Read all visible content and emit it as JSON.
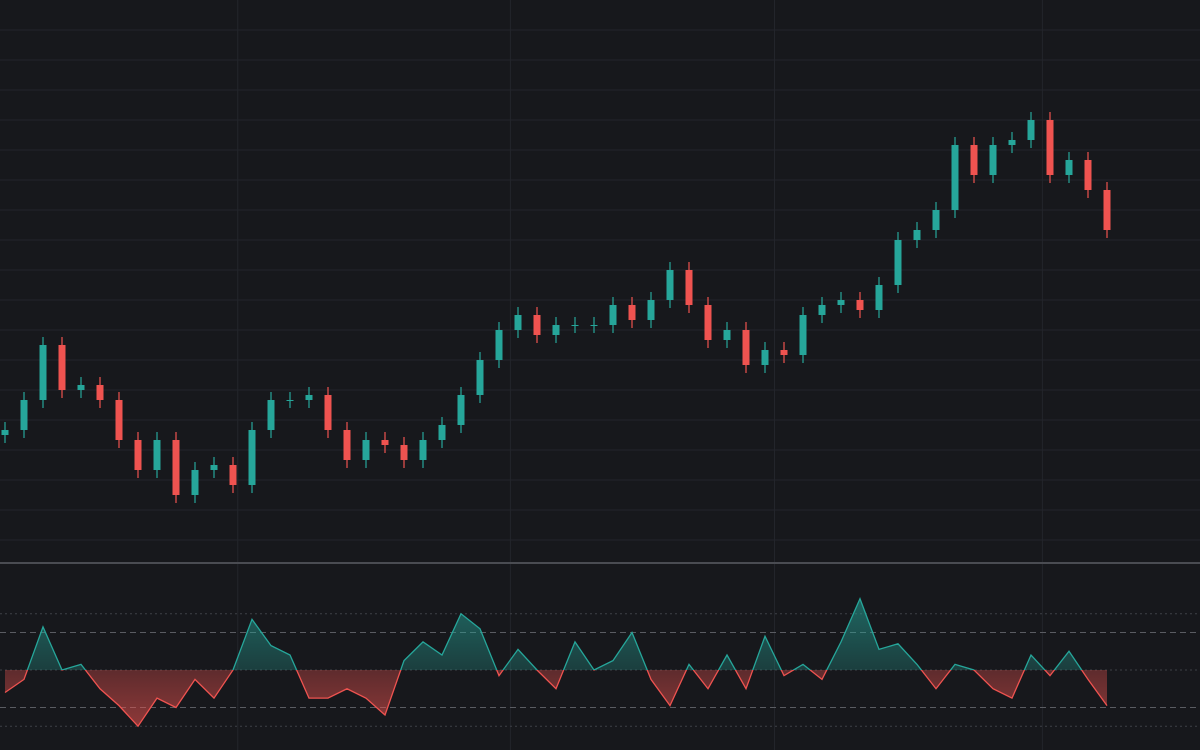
{
  "chart_data": [
    {
      "type": "candlestick",
      "up_color": "#26a69a",
      "down_color": "#ef5350",
      "grid": true,
      "ylim": [
        0,
        560
      ],
      "yticks": [
        20,
        50,
        80,
        110,
        140,
        170,
        200,
        230,
        260,
        290,
        320,
        350,
        380,
        410,
        440,
        470,
        500,
        530
      ],
      "xticks": [
        12.25,
        26.6,
        40.5,
        54.6
      ],
      "open": [
        125,
        130,
        160,
        215,
        170,
        175,
        160,
        120,
        90,
        120,
        65,
        90,
        95,
        75,
        130,
        160,
        160,
        165,
        130,
        100,
        120,
        115,
        100,
        120,
        135,
        165,
        200,
        230,
        245,
        225,
        235,
        235,
        235,
        255,
        240,
        260,
        290,
        255,
        220,
        230,
        195,
        210,
        205,
        245,
        255,
        260,
        250,
        275,
        320,
        330,
        350,
        415,
        385,
        415,
        420,
        440,
        385,
        400,
        370
      ],
      "high": [
        138,
        168,
        223,
        223,
        183,
        183,
        168,
        128,
        128,
        128,
        98,
        103,
        103,
        138,
        168,
        168,
        173,
        173,
        138,
        128,
        128,
        123,
        128,
        143,
        173,
        208,
        238,
        253,
        253,
        243,
        243,
        243,
        263,
        263,
        268,
        298,
        298,
        263,
        238,
        238,
        218,
        218,
        253,
        263,
        268,
        268,
        283,
        328,
        338,
        358,
        423,
        423,
        423,
        428,
        448,
        448,
        408,
        408,
        378
      ],
      "low": [
        117,
        122,
        152,
        162,
        162,
        152,
        112,
        82,
        82,
        57,
        57,
        82,
        67,
        67,
        122,
        152,
        152,
        122,
        92,
        92,
        107,
        92,
        92,
        112,
        127,
        157,
        192,
        222,
        217,
        217,
        227,
        227,
        227,
        232,
        232,
        252,
        247,
        212,
        212,
        187,
        187,
        197,
        197,
        237,
        247,
        242,
        242,
        267,
        312,
        322,
        342,
        377,
        377,
        407,
        412,
        377,
        377,
        362,
        322
      ],
      "close": [
        130,
        160,
        215,
        170,
        175,
        160,
        120,
        90,
        120,
        65,
        90,
        95,
        75,
        130,
        160,
        160,
        165,
        130,
        100,
        120,
        115,
        100,
        120,
        135,
        165,
        200,
        230,
        245,
        225,
        235,
        235,
        235,
        255,
        240,
        260,
        290,
        255,
        220,
        230,
        195,
        210,
        205,
        245,
        255,
        260,
        250,
        275,
        320,
        330,
        350,
        415,
        385,
        415,
        420,
        440,
        385,
        400,
        370,
        330
      ]
    },
    {
      "type": "oscillator",
      "up_color": "#26a69a",
      "down_color": "#ef5350",
      "baseline": 50,
      "ylim": [
        10,
        90
      ],
      "levels": [
        {
          "value": 80,
          "style": "dotted"
        },
        {
          "value": 70,
          "style": "dashed"
        },
        {
          "value": 50,
          "style": "dotted"
        },
        {
          "value": 30,
          "style": "dashed"
        },
        {
          "value": 20,
          "style": "dotted"
        }
      ],
      "values": [
        38,
        45,
        73,
        50,
        53,
        40,
        31,
        20,
        35,
        30,
        45,
        35,
        50,
        77,
        63,
        58,
        35,
        35,
        40,
        35,
        26,
        55,
        65,
        58,
        80,
        72,
        47,
        61,
        50,
        40,
        65,
        50,
        55,
        70,
        45,
        31,
        53,
        40,
        58,
        40,
        68,
        47,
        53,
        45,
        65,
        88,
        61,
        64,
        53,
        40,
        53,
        50,
        40,
        35,
        58,
        47,
        60,
        45,
        31
      ]
    }
  ]
}
